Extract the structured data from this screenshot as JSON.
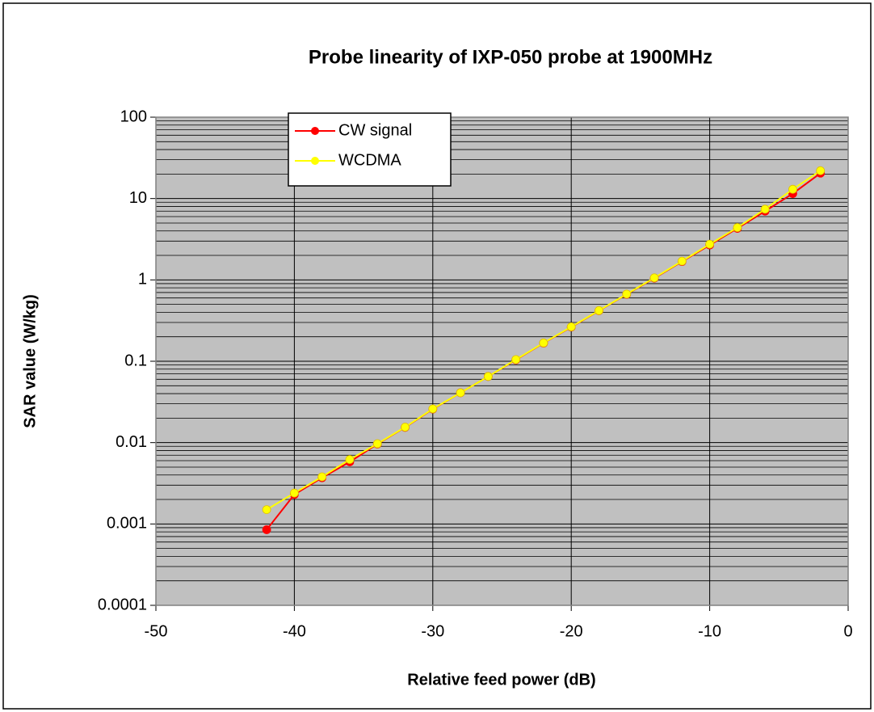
{
  "chart_data": {
    "type": "line",
    "title": "Probe linearity of IXP-050 probe at 1900MHz",
    "xlabel": "Relative feed power (dB)",
    "ylabel": "SAR value (W/kg)",
    "x": [
      -42,
      -40,
      -38,
      -36,
      -34,
      -32,
      -30,
      -28,
      -26,
      -24,
      -22,
      -20,
      -18,
      -16,
      -14,
      -12,
      -10,
      -8,
      -6,
      -4,
      -2
    ],
    "series": [
      {
        "name": "CW signal",
        "color": "#ff0000",
        "values": [
          0.00085,
          0.0023,
          0.0037,
          0.0058,
          0.0096,
          0.0154,
          0.0258,
          0.041,
          0.065,
          0.104,
          0.167,
          0.263,
          0.418,
          0.665,
          1.05,
          1.68,
          2.68,
          4.3,
          7.0,
          11.5,
          20.5
        ]
      },
      {
        "name": "WCDMA",
        "color": "#ffff00",
        "values": [
          0.0015,
          0.0024,
          0.0038,
          0.0062,
          0.0097,
          0.0155,
          0.026,
          0.041,
          0.065,
          0.105,
          0.168,
          0.265,
          0.42,
          0.67,
          1.06,
          1.7,
          2.75,
          4.4,
          7.4,
          13,
          22
        ]
      }
    ],
    "xlim": [
      -50,
      0
    ],
    "xticks": [
      -50,
      -40,
      -30,
      -20,
      -10,
      0
    ],
    "ylim": [
      0.0001,
      100
    ],
    "yticks": [
      0.0001,
      0.001,
      0.01,
      0.1,
      1,
      10,
      100
    ],
    "ylog": true,
    "grid": true,
    "minor_grid": true,
    "legend": "upper left",
    "plot_background": "#c0c0c0"
  }
}
